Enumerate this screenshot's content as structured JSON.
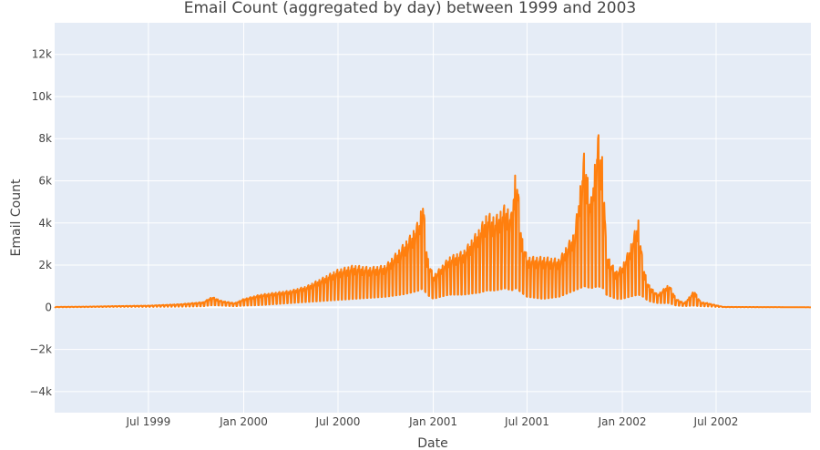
{
  "chart_data": {
    "type": "line",
    "title": "Email Count (aggregated by day) between 1999 and 2003",
    "xlabel": "Date",
    "ylabel": "Email Count",
    "xlim": [
      "1999-01-01",
      "2002-12-31"
    ],
    "ylim": [
      -5000,
      13500
    ],
    "x_ticks": [
      {
        "date": "1999-07-01",
        "label": "Jul 1999"
      },
      {
        "date": "2000-01-01",
        "label": "Jan 2000"
      },
      {
        "date": "2000-07-01",
        "label": "Jul 2000"
      },
      {
        "date": "2001-01-01",
        "label": "Jan 2001"
      },
      {
        "date": "2001-07-01",
        "label": "Jul 2001"
      },
      {
        "date": "2002-01-01",
        "label": "Jan 2002"
      },
      {
        "date": "2002-07-01",
        "label": "Jul 2002"
      }
    ],
    "y_ticks": [
      {
        "value": -4000,
        "label": "−4k"
      },
      {
        "value": -2000,
        "label": "−2k"
      },
      {
        "value": 0,
        "label": "0"
      },
      {
        "value": 2000,
        "label": "2k"
      },
      {
        "value": 4000,
        "label": "4k"
      },
      {
        "value": 6000,
        "label": "6k"
      },
      {
        "value": 8000,
        "label": "8k"
      },
      {
        "value": 10000,
        "label": "10k"
      },
      {
        "value": 12000,
        "label": "12k"
      }
    ],
    "grid": true,
    "colors": {
      "line": "#ff7f0e",
      "plot_bg": "#e5ecf6",
      "grid": "#ffffff"
    },
    "series": [
      {
        "line_style": "weekly-oscillating",
        "points": [
          [
            "1999-01-01",
            0,
            20
          ],
          [
            "1999-03-01",
            10,
            30
          ],
          [
            "1999-05-01",
            20,
            60
          ],
          [
            "1999-07-01",
            20,
            80
          ],
          [
            "1999-09-01",
            30,
            150
          ],
          [
            "1999-10-15",
            50,
            250
          ],
          [
            "1999-11-01",
            100,
            500
          ],
          [
            "1999-11-20",
            80,
            300
          ],
          [
            "1999-12-15",
            50,
            200
          ],
          [
            "2000-01-01",
            80,
            400
          ],
          [
            "2000-02-01",
            100,
            600
          ],
          [
            "2000-03-01",
            150,
            700
          ],
          [
            "2000-04-01",
            200,
            800
          ],
          [
            "2000-05-01",
            250,
            1000
          ],
          [
            "2000-06-01",
            300,
            1400
          ],
          [
            "2000-07-01",
            350,
            1800
          ],
          [
            "2000-08-01",
            400,
            2000
          ],
          [
            "2000-09-01",
            450,
            1900
          ],
          [
            "2000-10-01",
            500,
            2000
          ],
          [
            "2000-11-01",
            600,
            2900
          ],
          [
            "2000-11-20",
            700,
            3500
          ],
          [
            "2000-12-05",
            800,
            4200
          ],
          [
            "2000-12-12",
            900,
            5200
          ],
          [
            "2000-12-20",
            600,
            2500
          ],
          [
            "2001-01-01",
            400,
            1500
          ],
          [
            "2001-01-15",
            500,
            1900
          ],
          [
            "2001-02-01",
            600,
            2400
          ],
          [
            "2001-03-01",
            600,
            2700
          ],
          [
            "2001-04-01",
            700,
            3800
          ],
          [
            "2001-04-15",
            800,
            4500
          ],
          [
            "2001-05-01",
            800,
            4300
          ],
          [
            "2001-05-20",
            900,
            4900
          ],
          [
            "2001-06-01",
            800,
            4500
          ],
          [
            "2001-06-10",
            900,
            6900
          ],
          [
            "2001-06-20",
            700,
            3500
          ],
          [
            "2001-07-01",
            500,
            2400
          ],
          [
            "2001-08-01",
            400,
            2400
          ],
          [
            "2001-09-01",
            500,
            2300
          ],
          [
            "2001-10-01",
            800,
            3600
          ],
          [
            "2001-10-20",
            1000,
            7500
          ],
          [
            "2001-11-01",
            900,
            5000
          ],
          [
            "2001-11-15",
            1000,
            8300
          ],
          [
            "2001-11-25",
            900,
            7000
          ],
          [
            "2001-12-01",
            600,
            2600
          ],
          [
            "2001-12-20",
            400,
            1700
          ],
          [
            "2002-01-01",
            400,
            2000
          ],
          [
            "2002-01-15",
            500,
            2800
          ],
          [
            "2002-02-01",
            600,
            4200
          ],
          [
            "2002-02-10",
            500,
            2000
          ],
          [
            "2002-02-20",
            300,
            1100
          ],
          [
            "2002-03-10",
            200,
            600
          ],
          [
            "2002-04-01",
            200,
            1100
          ],
          [
            "2002-04-15",
            80,
            400
          ],
          [
            "2002-05-01",
            60,
            200
          ],
          [
            "2002-05-20",
            80,
            800
          ],
          [
            "2002-06-01",
            50,
            250
          ],
          [
            "2002-06-15",
            40,
            200
          ],
          [
            "2002-07-01",
            20,
            100
          ],
          [
            "2002-07-15",
            5,
            20
          ],
          [
            "2002-12-31",
            0,
            0
          ]
        ]
      }
    ]
  }
}
